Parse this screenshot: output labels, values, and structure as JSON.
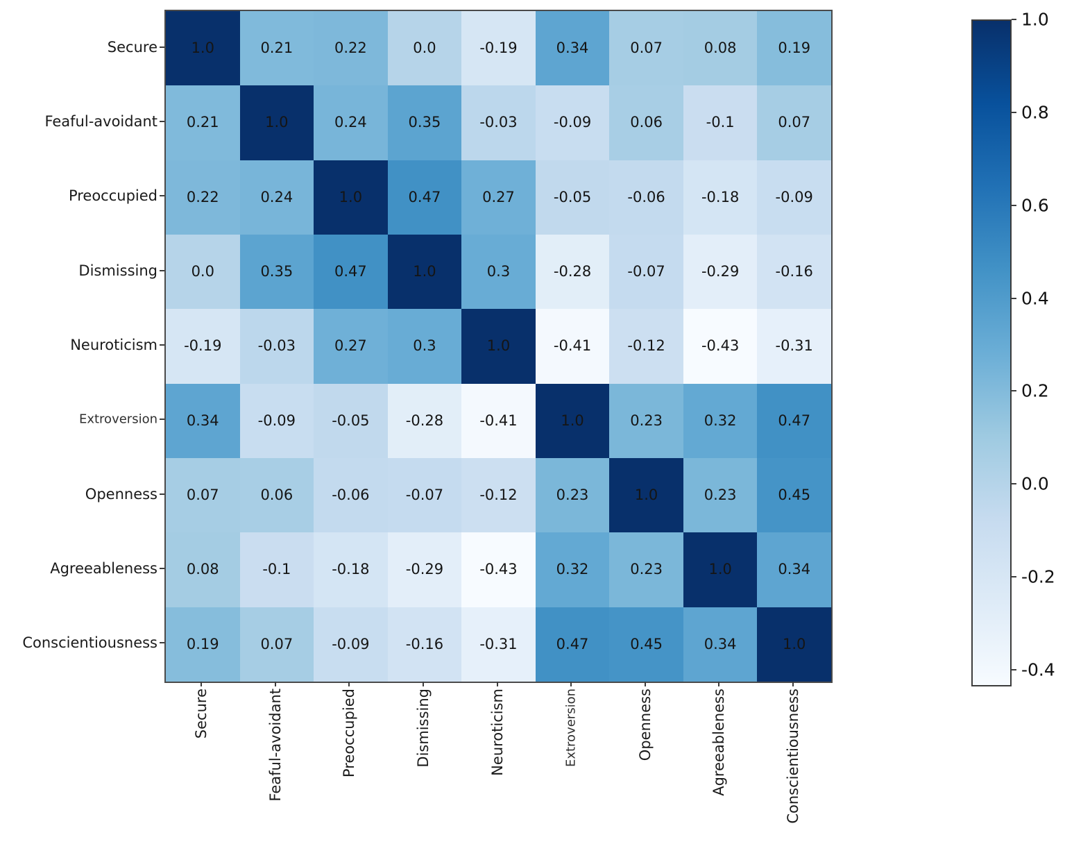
{
  "figure": {
    "background": "#ffffff",
    "spine_color": "#4a4a4a"
  },
  "chart_data": {
    "type": "heatmap",
    "title": "",
    "xlabel": "",
    "ylabel": "",
    "categories": [
      "Secure",
      "Feaful-avoidant",
      "Preoccupied",
      "Dismissing",
      "Neuroticism",
      "Extroversion",
      "Openness",
      "Agreeableness",
      "Conscientiousness"
    ],
    "matrix": [
      [
        1.0,
        0.21,
        0.22,
        0.0,
        -0.19,
        0.34,
        0.07,
        0.08,
        0.19
      ],
      [
        0.21,
        1.0,
        0.24,
        0.35,
        -0.03,
        -0.09,
        0.06,
        -0.1,
        0.07
      ],
      [
        0.22,
        0.24,
        1.0,
        0.47,
        0.27,
        -0.05,
        -0.06,
        -0.18,
        -0.09
      ],
      [
        0.0,
        0.35,
        0.47,
        1.0,
        0.3,
        -0.28,
        -0.07,
        -0.29,
        -0.16
      ],
      [
        -0.19,
        -0.03,
        0.27,
        0.3,
        1.0,
        -0.41,
        -0.12,
        -0.43,
        -0.31
      ],
      [
        0.34,
        -0.09,
        -0.05,
        -0.28,
        -0.41,
        1.0,
        0.23,
        0.32,
        0.47
      ],
      [
        0.07,
        0.06,
        -0.06,
        -0.07,
        -0.12,
        0.23,
        1.0,
        0.23,
        0.45
      ],
      [
        0.08,
        -0.1,
        -0.18,
        -0.29,
        -0.43,
        0.32,
        0.23,
        1.0,
        0.34
      ],
      [
        0.19,
        0.07,
        -0.09,
        -0.16,
        -0.31,
        0.47,
        0.45,
        0.34,
        1.0
      ]
    ],
    "colormap": "Blues",
    "vmin": -0.43,
    "vmax": 1.0,
    "value_label_color": "#151515",
    "colorbar_ticks": [
      "1.0",
      "0.8",
      "0.6",
      "0.4",
      "0.2",
      "0.0",
      "-0.2",
      "-0.4"
    ],
    "layout": {
      "grid": false,
      "legend": "colorbar-right",
      "x_tick_rotation": -90,
      "small_tick_label": "Extroversion"
    }
  }
}
